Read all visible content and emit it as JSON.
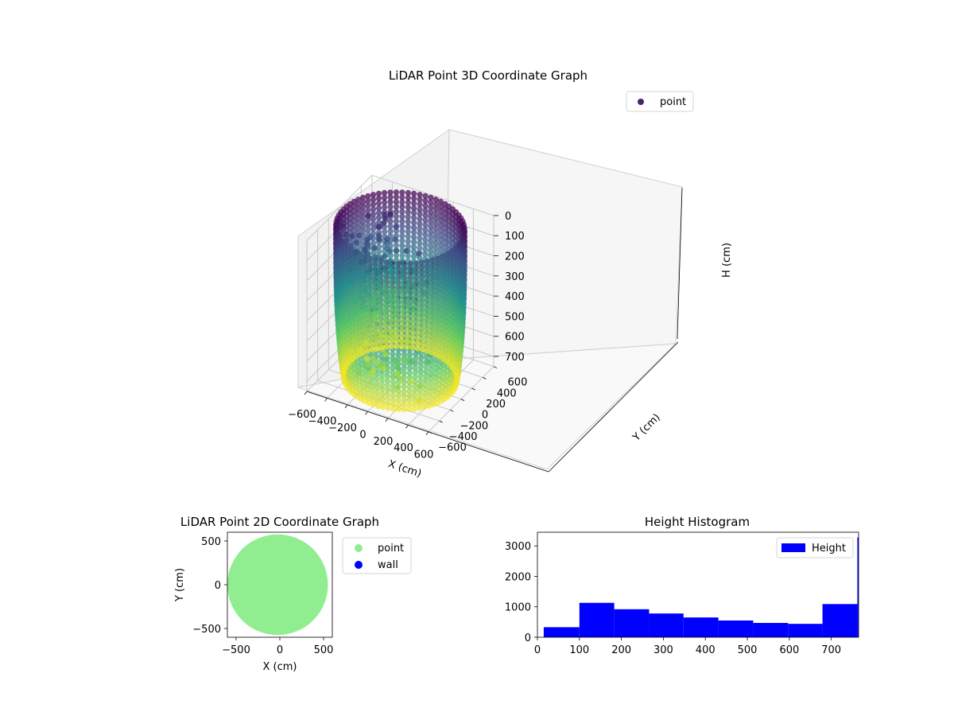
{
  "chart_data": [
    {
      "type": "scatter3d",
      "title": "LiDAR Point 3D Coordinate Graph",
      "xlabel": "X (cm)",
      "ylabel": "Y (cm)",
      "zlabel": "H (cm)",
      "xlim": [
        -600,
        600
      ],
      "ylim": [
        -600,
        600
      ],
      "zlim": [
        0,
        750
      ],
      "z_inverted": true,
      "x_ticks": [
        "−600",
        "−400",
        "−200",
        "0",
        "200",
        "400",
        "600"
      ],
      "y_ticks": [
        "−600",
        "−400",
        "−200",
        "0",
        "200",
        "400",
        "600"
      ],
      "z_ticks": [
        "0",
        "100",
        "200",
        "300",
        "400",
        "500",
        "600",
        "700"
      ],
      "legend": [
        "point"
      ],
      "legend_position": "top-right",
      "colormap": "viridis",
      "grid": true
    },
    {
      "type": "scatter",
      "title": "LiDAR Point 2D Coordinate Graph",
      "xlabel": "X (cm)",
      "ylabel": "Y (cm)",
      "xlim": [
        -600,
        600
      ],
      "ylim": [
        -600,
        600
      ],
      "x_ticks": [
        "−500",
        "0",
        "500"
      ],
      "y_ticks": [
        "−500",
        "0",
        "500"
      ],
      "series": [
        {
          "name": "point",
          "color": "#90ee90"
        },
        {
          "name": "wall",
          "color": "#0000ff"
        }
      ],
      "legend_position": "outside-right"
    },
    {
      "type": "bar",
      "title": "Height Histogram",
      "xlabel": "",
      "ylabel": "",
      "xlim": [
        0,
        765
      ],
      "ylim": [
        0,
        3450
      ],
      "x_ticks": [
        "0",
        "100",
        "200",
        "300",
        "400",
        "500",
        "600",
        "700"
      ],
      "y_ticks": [
        "0",
        "1000",
        "2000",
        "3000"
      ],
      "color": "#0000ff",
      "bins": [
        {
          "from": 15,
          "to": 100,
          "count": 330
        },
        {
          "from": 100,
          "to": 183,
          "count": 1130
        },
        {
          "from": 183,
          "to": 266,
          "count": 920
        },
        {
          "from": 266,
          "to": 348,
          "count": 780
        },
        {
          "from": 348,
          "to": 431,
          "count": 650
        },
        {
          "from": 431,
          "to": 514,
          "count": 550
        },
        {
          "from": 514,
          "to": 597,
          "count": 470
        },
        {
          "from": 597,
          "to": 679,
          "count": 440
        },
        {
          "from": 679,
          "to": 762,
          "count": 1090
        },
        {
          "from": 762,
          "to": 765,
          "count": 3280
        }
      ],
      "legend": [
        "Height"
      ],
      "legend_position": "top-right"
    }
  ]
}
